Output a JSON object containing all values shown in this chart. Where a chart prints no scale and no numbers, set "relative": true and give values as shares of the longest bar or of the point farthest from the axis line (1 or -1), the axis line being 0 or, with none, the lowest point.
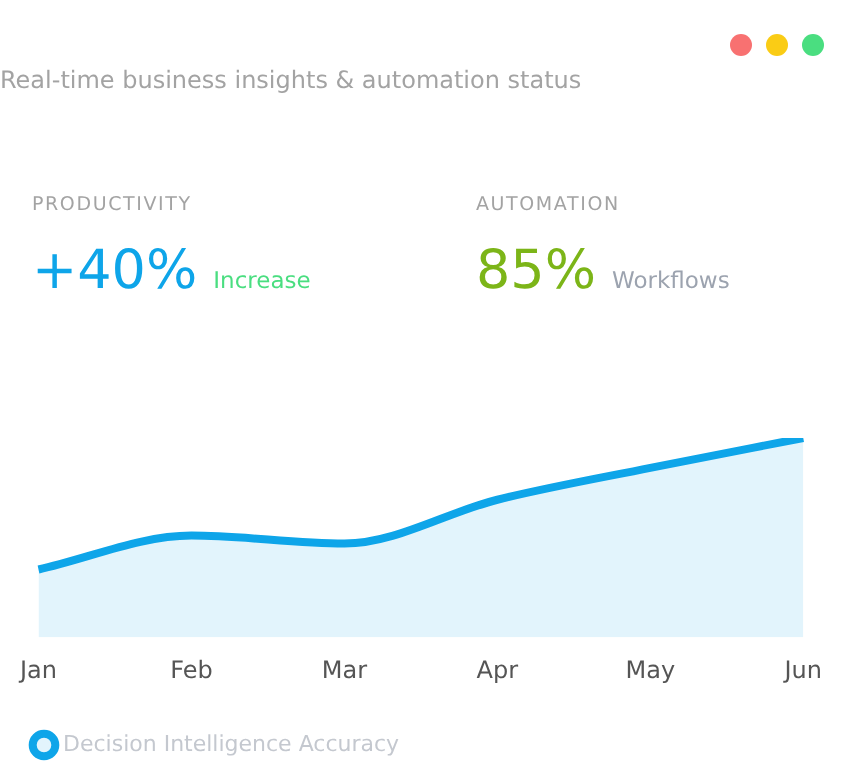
{
  "chart_data": {
    "type": "area",
    "subtitle": "Real-time business insights & automation status",
    "annotations": [
      "PRODUCTIVITY",
      "+40%",
      "Increase",
      "AUTOMATION",
      "85%",
      "Workflows"
    ],
    "categories": [
      "Jan",
      "Feb",
      "Mar",
      "Apr",
      "May",
      "Jun"
    ],
    "series": [
      {
        "name": "Decision Intelligence Accuracy",
        "color": "#0ea5e9",
        "values": [
          0.34,
          0.51,
          0.47,
          0.69,
          0.85,
          1
        ]
      }
    ],
    "relative": true,
    "legend": "bottom",
    "marker": "none",
    "grid": false
  }
}
